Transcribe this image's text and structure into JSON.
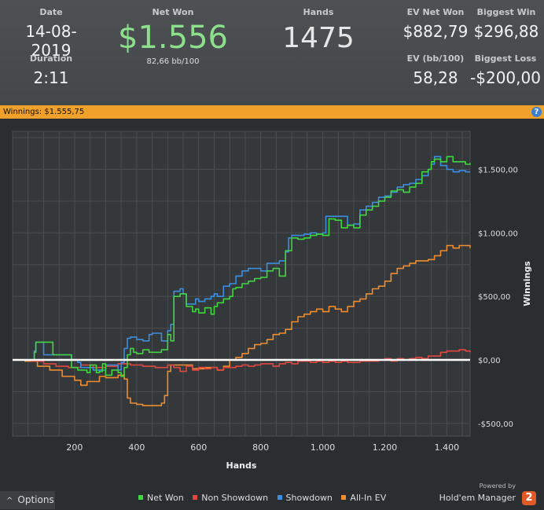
{
  "stats": {
    "date_label": "Date",
    "date": "14-08-2019",
    "duration_label": "Duration",
    "duration": "2:11",
    "net_won_label": "Net Won",
    "net_won": "$1.556",
    "bb_per_100": "82,66 bb/100",
    "hands_label": "Hands",
    "hands": "1475",
    "ev_net_won_label": "EV Net Won",
    "ev_net_won": "$882,79",
    "ev_bb_label": "EV (bb/100)",
    "ev_bb": "58,28",
    "biggest_win_label": "Biggest Win",
    "biggest_win": "$296,88",
    "biggest_loss_label": "Biggest Loss",
    "biggest_loss": "-$200,00"
  },
  "winnings_bar": {
    "text": "Winnings: $1.555,75",
    "help": "?"
  },
  "footer": {
    "options_label": "Options",
    "powered_by": "Powered by",
    "brand": "Hold'em Manager",
    "brand_badge": "2"
  },
  "colors": {
    "net_won": "#3fd63f",
    "non_showdown": "#e2473f",
    "showdown": "#3b8fe0",
    "all_in_ev": "#ee8c2e"
  },
  "chart_data": {
    "type": "line",
    "xlabel": "Hands",
    "ylabel": "Winnings",
    "xlim": [
      0,
      1475
    ],
    "ylim": [
      -600,
      1800
    ],
    "x_ticks": [
      200,
      400,
      600,
      800,
      1000,
      1200,
      1400
    ],
    "x_tick_labels": [
      "200",
      "400",
      "600",
      "800",
      "1.000",
      "1.200",
      "1.400"
    ],
    "y_ticks": [
      -500,
      0,
      500,
      1000,
      1500
    ],
    "y_tick_labels": [
      "-$500,00",
      "$0,00",
      "$500,00",
      "$1.000,00",
      "$1.500,00"
    ],
    "legend_position": "bottom",
    "grid": true,
    "series": [
      {
        "name": "Net Won",
        "color": "#3fd63f",
        "x": [
          0,
          70,
          75,
          130,
          190,
          210,
          240,
          250,
          270,
          280,
          290,
          300,
          320,
          340,
          350,
          360,
          370,
          380,
          390,
          400,
          420,
          440,
          480,
          500,
          510,
          520,
          540,
          560,
          580,
          590,
          600,
          620,
          640,
          650,
          660,
          680,
          700,
          710,
          720,
          740,
          760,
          780,
          800,
          820,
          840,
          860,
          880,
          900,
          920,
          940,
          960,
          980,
          1000,
          1020,
          1040,
          1060,
          1080,
          1100,
          1120,
          1140,
          1160,
          1180,
          1200,
          1220,
          1240,
          1260,
          1280,
          1300,
          1320,
          1340,
          1350,
          1360,
          1380,
          1400,
          1420,
          1440,
          1460,
          1475
        ],
        "y": [
          0,
          60,
          140,
          40,
          -60,
          -80,
          -100,
          -40,
          -100,
          -90,
          -30,
          -120,
          -80,
          -100,
          -130,
          -60,
          40,
          90,
          60,
          50,
          80,
          60,
          80,
          200,
          150,
          500,
          520,
          420,
          380,
          400,
          370,
          410,
          360,
          420,
          450,
          480,
          500,
          560,
          570,
          600,
          620,
          640,
          650,
          700,
          720,
          660,
          860,
          960,
          950,
          960,
          980,
          990,
          980,
          1110,
          1100,
          1040,
          1060,
          1040,
          1140,
          1180,
          1210,
          1250,
          1280,
          1330,
          1340,
          1320,
          1360,
          1390,
          1480,
          1500,
          1560,
          1580,
          1560,
          1600,
          1560,
          1560,
          1540,
          1550
        ]
      },
      {
        "name": "Non Showdown",
        "color": "#e2473f",
        "x": [
          0,
          60,
          100,
          140,
          180,
          220,
          260,
          300,
          340,
          380,
          420,
          460,
          500,
          520,
          540,
          560,
          580,
          600,
          620,
          640,
          660,
          680,
          700,
          720,
          740,
          760,
          780,
          800,
          820,
          840,
          860,
          880,
          900,
          920,
          940,
          960,
          980,
          1000,
          1020,
          1040,
          1060,
          1080,
          1100,
          1120,
          1140,
          1160,
          1180,
          1200,
          1220,
          1240,
          1260,
          1280,
          1300,
          1320,
          1340,
          1360,
          1380,
          1400,
          1420,
          1440,
          1460,
          1475
        ],
        "y": [
          0,
          -10,
          -30,
          -50,
          -60,
          -40,
          -60,
          -50,
          -30,
          -40,
          -50,
          -60,
          -40,
          -60,
          -90,
          -50,
          -80,
          -60,
          -70,
          -60,
          -80,
          -60,
          -60,
          -50,
          -40,
          -50,
          -40,
          -30,
          -30,
          -50,
          -30,
          -20,
          -30,
          -10,
          -10,
          -20,
          -10,
          -20,
          -10,
          -20,
          -10,
          -20,
          -20,
          -10,
          -10,
          -10,
          0,
          10,
          -10,
          10,
          0,
          10,
          20,
          10,
          30,
          30,
          60,
          70,
          70,
          80,
          70,
          60
        ]
      },
      {
        "name": "Showdown",
        "color": "#3b8fe0",
        "x": [
          0,
          70,
          75,
          90,
          100,
          180,
          190,
          210,
          220,
          250,
          260,
          290,
          300,
          330,
          340,
          350,
          360,
          370,
          380,
          400,
          420,
          440,
          450,
          480,
          500,
          510,
          520,
          540,
          550,
          560,
          580,
          590,
          600,
          620,
          640,
          650,
          660,
          680,
          700,
          720,
          740,
          760,
          780,
          800,
          820,
          840,
          860,
          880,
          890,
          900,
          920,
          940,
          960,
          980,
          1000,
          1010,
          1020,
          1060,
          1080,
          1100,
          1120,
          1140,
          1160,
          1180,
          1200,
          1220,
          1240,
          1260,
          1280,
          1300,
          1320,
          1340,
          1350,
          1360,
          1380,
          1400,
          1420,
          1440,
          1460,
          1475
        ],
        "y": [
          0,
          70,
          140,
          140,
          40,
          40,
          0,
          -20,
          -60,
          -60,
          -80,
          -80,
          -40,
          -40,
          -80,
          -20,
          90,
          170,
          180,
          160,
          150,
          200,
          210,
          150,
          230,
          280,
          540,
          560,
          520,
          440,
          440,
          480,
          460,
          480,
          500,
          520,
          500,
          580,
          600,
          660,
          700,
          720,
          720,
          700,
          760,
          760,
          780,
          850,
          960,
          980,
          980,
          990,
          1000,
          990,
          1000,
          1130,
          1130,
          1130,
          1060,
          1070,
          1180,
          1210,
          1240,
          1280,
          1290,
          1320,
          1360,
          1380,
          1390,
          1420,
          1450,
          1500,
          1540,
          1600,
          1530,
          1500,
          1480,
          1490,
          1480,
          1480
        ]
      },
      {
        "name": "All-In EV",
        "color": "#ee8c2e",
        "x": [
          0,
          40,
          80,
          120,
          160,
          200,
          220,
          240,
          280,
          300,
          340,
          360,
          370,
          380,
          400,
          420,
          440,
          460,
          480,
          490,
          500,
          510,
          540,
          580,
          620,
          660,
          680,
          700,
          720,
          740,
          760,
          780,
          800,
          820,
          840,
          860,
          880,
          900,
          920,
          940,
          960,
          980,
          1000,
          1020,
          1040,
          1060,
          1080,
          1100,
          1120,
          1140,
          1160,
          1180,
          1200,
          1220,
          1240,
          1260,
          1280,
          1300,
          1320,
          1340,
          1360,
          1380,
          1400,
          1420,
          1440,
          1460,
          1475
        ],
        "y": [
          0,
          -10,
          -50,
          -80,
          -130,
          -160,
          -200,
          -170,
          -130,
          -140,
          -120,
          -150,
          -300,
          -340,
          -350,
          -360,
          -360,
          -360,
          -340,
          -280,
          -90,
          -40,
          -40,
          -70,
          -60,
          -80,
          -50,
          0,
          20,
          50,
          90,
          120,
          130,
          160,
          200,
          210,
          240,
          300,
          340,
          360,
          380,
          400,
          380,
          420,
          400,
          380,
          420,
          460,
          480,
          520,
          560,
          580,
          620,
          680,
          720,
          740,
          760,
          780,
          780,
          790,
          820,
          860,
          900,
          880,
          900,
          900,
          880
        ]
      }
    ]
  }
}
